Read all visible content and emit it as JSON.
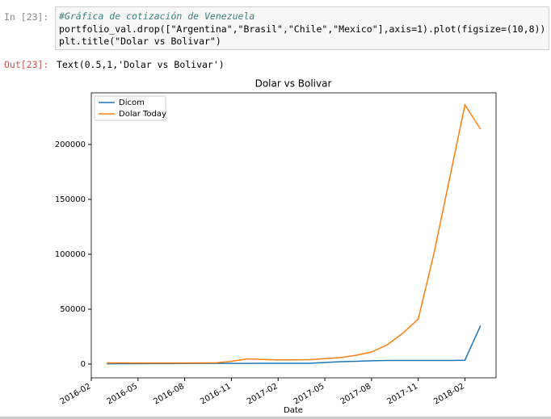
{
  "cells": [
    {
      "prompt": "In [23]:",
      "code": [
        "#Gráfica de cotización de Venezuela",
        "portfolio_val.drop([\"Argentina\",\"Brasil\",\"Chile\",\"Mexico\"],axis=1).plot(figsize=(10,8))",
        "plt.title(\"Dolar vs Bolivar\")"
      ]
    },
    {
      "prompt": "Out[23]:",
      "text": "Text(0.5,1,'Dolar vs Bolivar')"
    }
  ],
  "chart_data": {
    "type": "line",
    "title": "Dolar vs Bolivar",
    "x_label": "Date",
    "x": [
      "2016-03",
      "2016-04",
      "2016-05",
      "2016-06",
      "2016-07",
      "2016-08",
      "2016-09",
      "2016-10",
      "2016-11",
      "2016-12",
      "2017-01",
      "2017-02",
      "2017-03",
      "2017-04",
      "2017-05",
      "2017-06",
      "2017-07",
      "2017-08",
      "2017-09",
      "2017-10",
      "2017-11",
      "2017-12",
      "2018-01",
      "2018-02",
      "2018-03"
    ],
    "series": [
      {
        "name": "Dicom",
        "color": "#1f77b4",
        "values": [
          300,
          350,
          400,
          450,
          500,
          550,
          600,
          650,
          650,
          650,
          700,
          700,
          700,
          700,
          1500,
          2200,
          2600,
          3000,
          3300,
          3345,
          3345,
          3345,
          3345,
          3500,
          35000
        ]
      },
      {
        "name": "Dolar Today",
        "color": "#ff7f0e",
        "values": [
          1100,
          1100,
          1000,
          1000,
          1000,
          1000,
          1100,
          1200,
          2500,
          4800,
          4200,
          3800,
          3900,
          4000,
          5000,
          6000,
          8000,
          11000,
          17500,
          28000,
          41000,
          100000,
          168000,
          236000,
          214000
        ]
      }
    ],
    "xlim": [
      "2016-02",
      "2018-04"
    ],
    "xticks": [
      "2016-02",
      "2016-05",
      "2016-08",
      "2016-11",
      "2017-02",
      "2017-05",
      "2017-08",
      "2017-11",
      "2018-02"
    ],
    "ylim": [
      -12500,
      247000
    ],
    "yticks": [
      0,
      50000,
      100000,
      150000,
      200000
    ],
    "legend": "upper left"
  }
}
